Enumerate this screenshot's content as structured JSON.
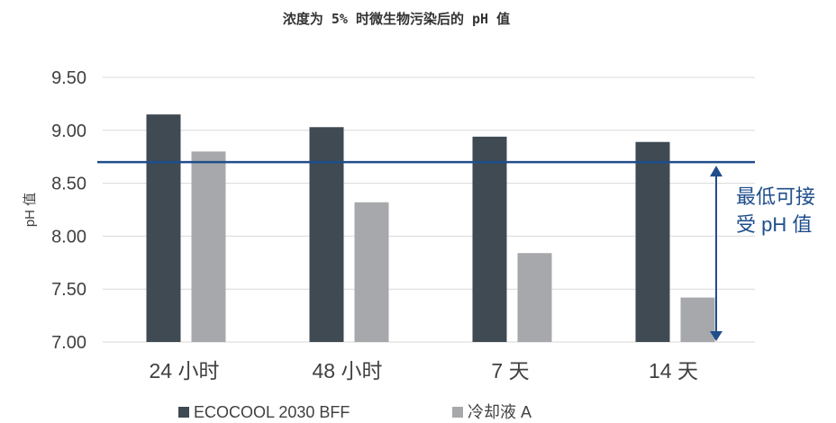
{
  "chart_data": {
    "type": "bar",
    "title": "浓度为 5% 时微生物污染后的 pH 值",
    "ylabel": "pH 值",
    "xlabel": "",
    "categories": [
      "24 小时",
      "48 小时",
      "7 天",
      "14 天"
    ],
    "series": [
      {
        "name": "ECOCOOL 2030 BFF",
        "values": [
          9.15,
          9.03,
          8.94,
          8.89
        ]
      },
      {
        "name": "冷却液 A",
        "values": [
          8.8,
          8.32,
          7.84,
          7.42
        ]
      }
    ],
    "ylim": [
      7.0,
      9.5
    ],
    "yticks": [
      "7.00",
      "7.50",
      "8.00",
      "8.50",
      "9.00",
      "9.50"
    ],
    "grid": true,
    "legend": "bottom",
    "reference_line": {
      "value": 8.7,
      "label_lines": [
        "最低可接",
        "受 pH 值"
      ]
    },
    "colors": {
      "series": [
        "#3f4a52",
        "#a6a8ab"
      ],
      "reference": "#1f4e8c",
      "grid": "#d9d9d9"
    }
  }
}
